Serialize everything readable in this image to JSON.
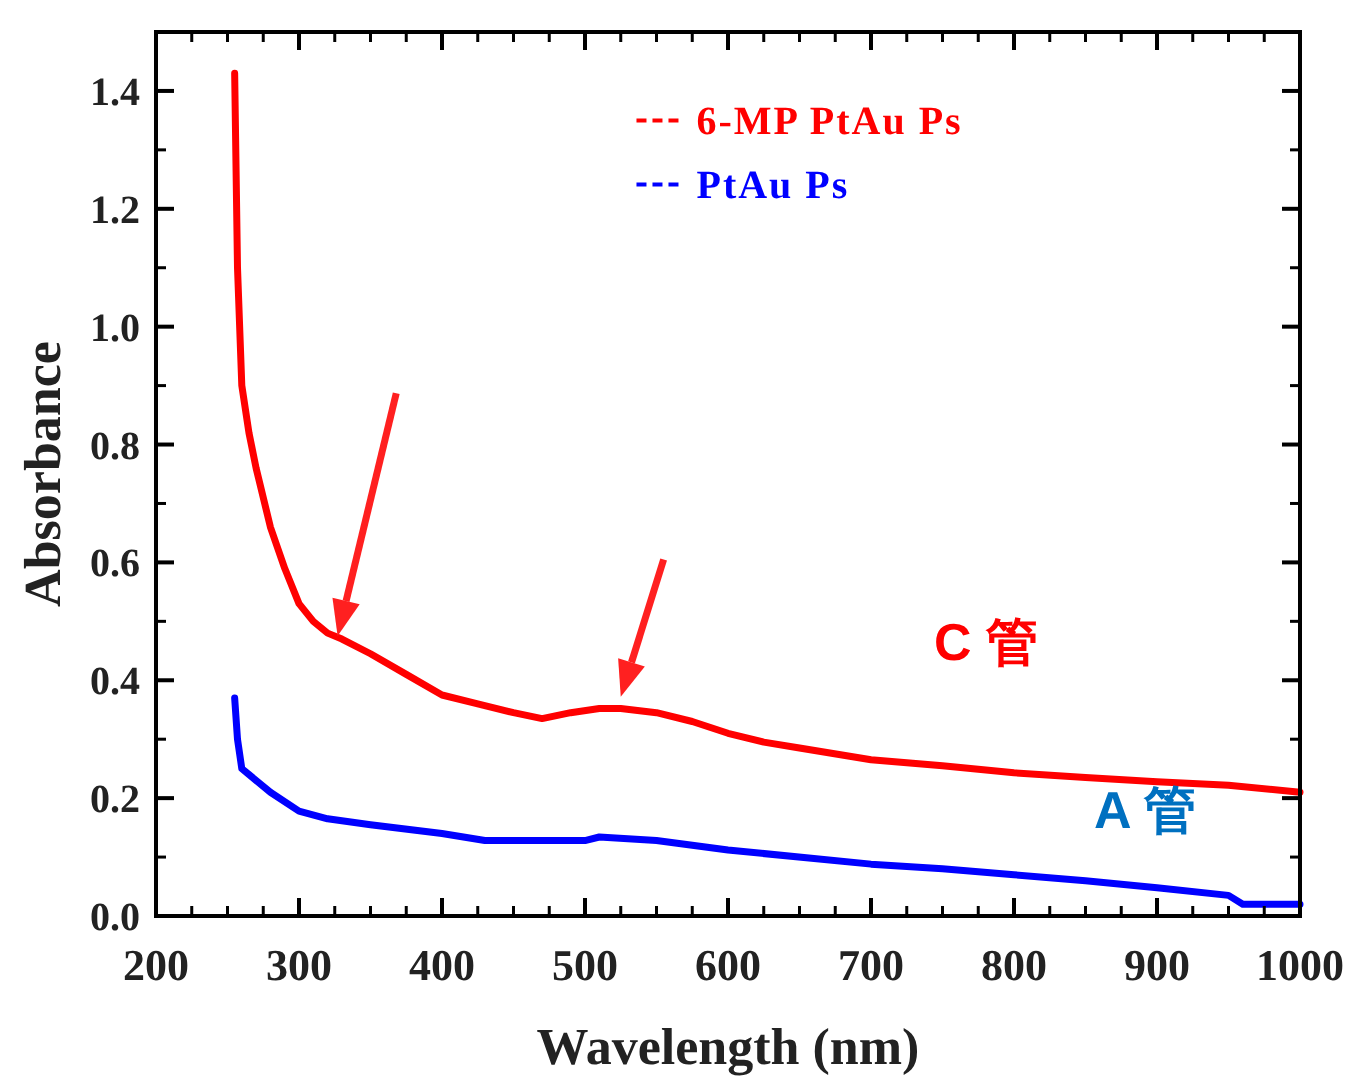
{
  "chart_data": {
    "type": "line",
    "xlabel": "Wavelength (nm)",
    "ylabel": "Absorbance",
    "xlim": [
      200,
      1000
    ],
    "ylim": [
      0,
      1.5
    ],
    "xticks": [
      200,
      300,
      400,
      500,
      600,
      700,
      800,
      900,
      1000
    ],
    "yticks": [
      {
        "value": 0,
        "label": "0.0"
      },
      0.2,
      0.4,
      0.6,
      0.8,
      {
        "value": 1,
        "label": "1.0"
      },
      1.2,
      1.4
    ],
    "legend": "top",
    "line_style": "solid",
    "series": [
      {
        "name": "6-MP PtAu Ps",
        "color": "#ff0000",
        "x": [
          255,
          257,
          260,
          265,
          270,
          280,
          290,
          300,
          310,
          320,
          330,
          350,
          375,
          400,
          425,
          450,
          470,
          490,
          510,
          525,
          550,
          575,
          600,
          625,
          650,
          700,
          750,
          800,
          850,
          900,
          950,
          1000
        ],
        "values": [
          1.43,
          1.1,
          0.9,
          0.82,
          0.76,
          0.66,
          0.59,
          0.53,
          0.5,
          0.48,
          0.47,
          0.445,
          0.41,
          0.375,
          0.36,
          0.345,
          0.335,
          0.345,
          0.352,
          0.352,
          0.345,
          0.33,
          0.31,
          0.295,
          0.285,
          0.265,
          0.255,
          0.243,
          0.235,
          0.228,
          0.222,
          0.21
        ]
      },
      {
        "name": "PtAu Ps",
        "color": "#0000ff",
        "x": [
          255,
          257,
          260,
          265,
          280,
          300,
          320,
          350,
          400,
          430,
          500,
          510,
          550,
          600,
          700,
          750,
          800,
          850,
          900,
          950,
          960,
          1000
        ],
        "values": [
          0.37,
          0.3,
          0.25,
          0.24,
          0.21,
          0.178,
          0.165,
          0.155,
          0.14,
          0.128,
          0.128,
          0.134,
          0.128,
          0.112,
          0.088,
          0.08,
          0.07,
          0.06,
          0.048,
          0.035,
          0.02,
          0.02
        ]
      }
    ],
    "annotations": [
      "C 管",
      "A 管"
    ]
  }
}
